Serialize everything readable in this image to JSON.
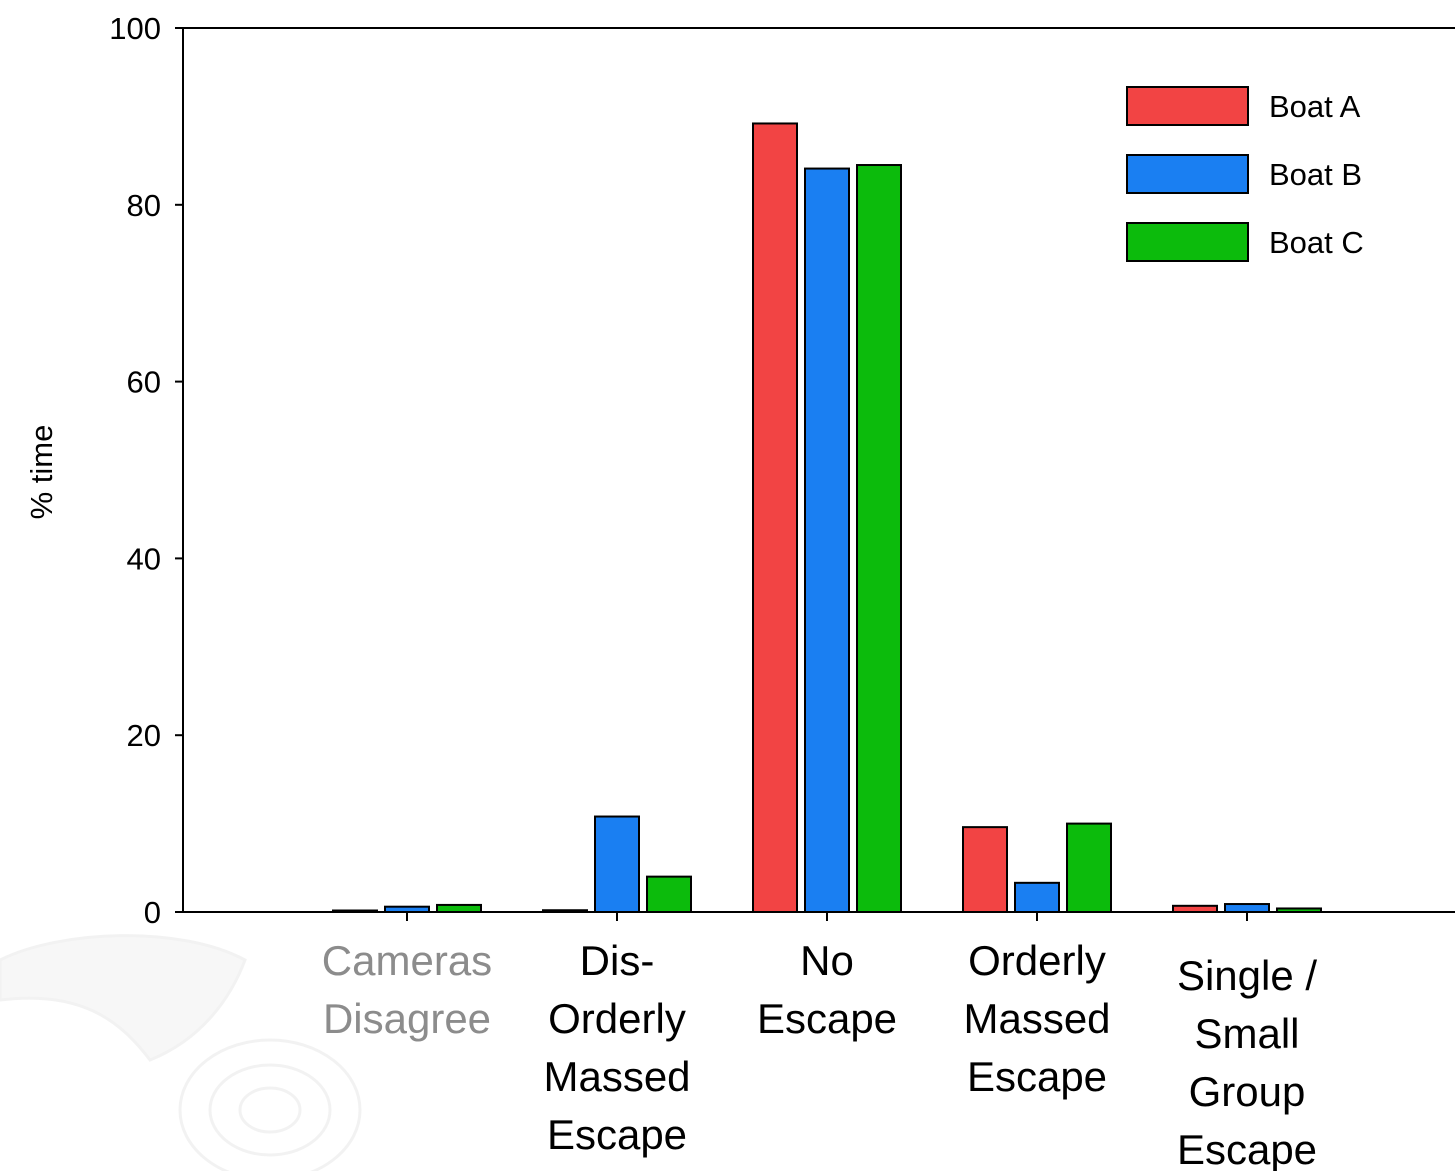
{
  "chart_data": {
    "type": "bar",
    "title": "",
    "xlabel": "",
    "ylabel": "% time",
    "ylim": [
      0,
      100
    ],
    "yticks": [
      0,
      20,
      40,
      60,
      80,
      100
    ],
    "grid": false,
    "legend_position": "top-right",
    "categories": [
      {
        "lines": [
          "Cameras",
          "Disagree"
        ],
        "color": "#8c8c8c"
      },
      {
        "lines": [
          "Dis-",
          "Orderly",
          "Massed",
          "Escape"
        ],
        "color": "#000000"
      },
      {
        "lines": [
          "No",
          "Escape"
        ],
        "color": "#000000"
      },
      {
        "lines": [
          "Orderly",
          "Massed",
          "Escape"
        ],
        "color": "#000000"
      },
      {
        "lines": [
          "Single /",
          "Small",
          "Group",
          "Escape"
        ],
        "color": "#000000"
      }
    ],
    "series": [
      {
        "name": "Boat A",
        "color": "#f24444",
        "values": [
          0,
          0.2,
          89.2,
          9.6,
          0.7
        ]
      },
      {
        "name": "Boat B",
        "color": "#1a7ff2",
        "values": [
          0.6,
          10.8,
          84.1,
          3.3,
          0.9
        ]
      },
      {
        "name": "Boat C",
        "color": "#0cbb0c",
        "values": [
          0.8,
          4.0,
          84.5,
          10.0,
          0.4
        ]
      }
    ]
  }
}
